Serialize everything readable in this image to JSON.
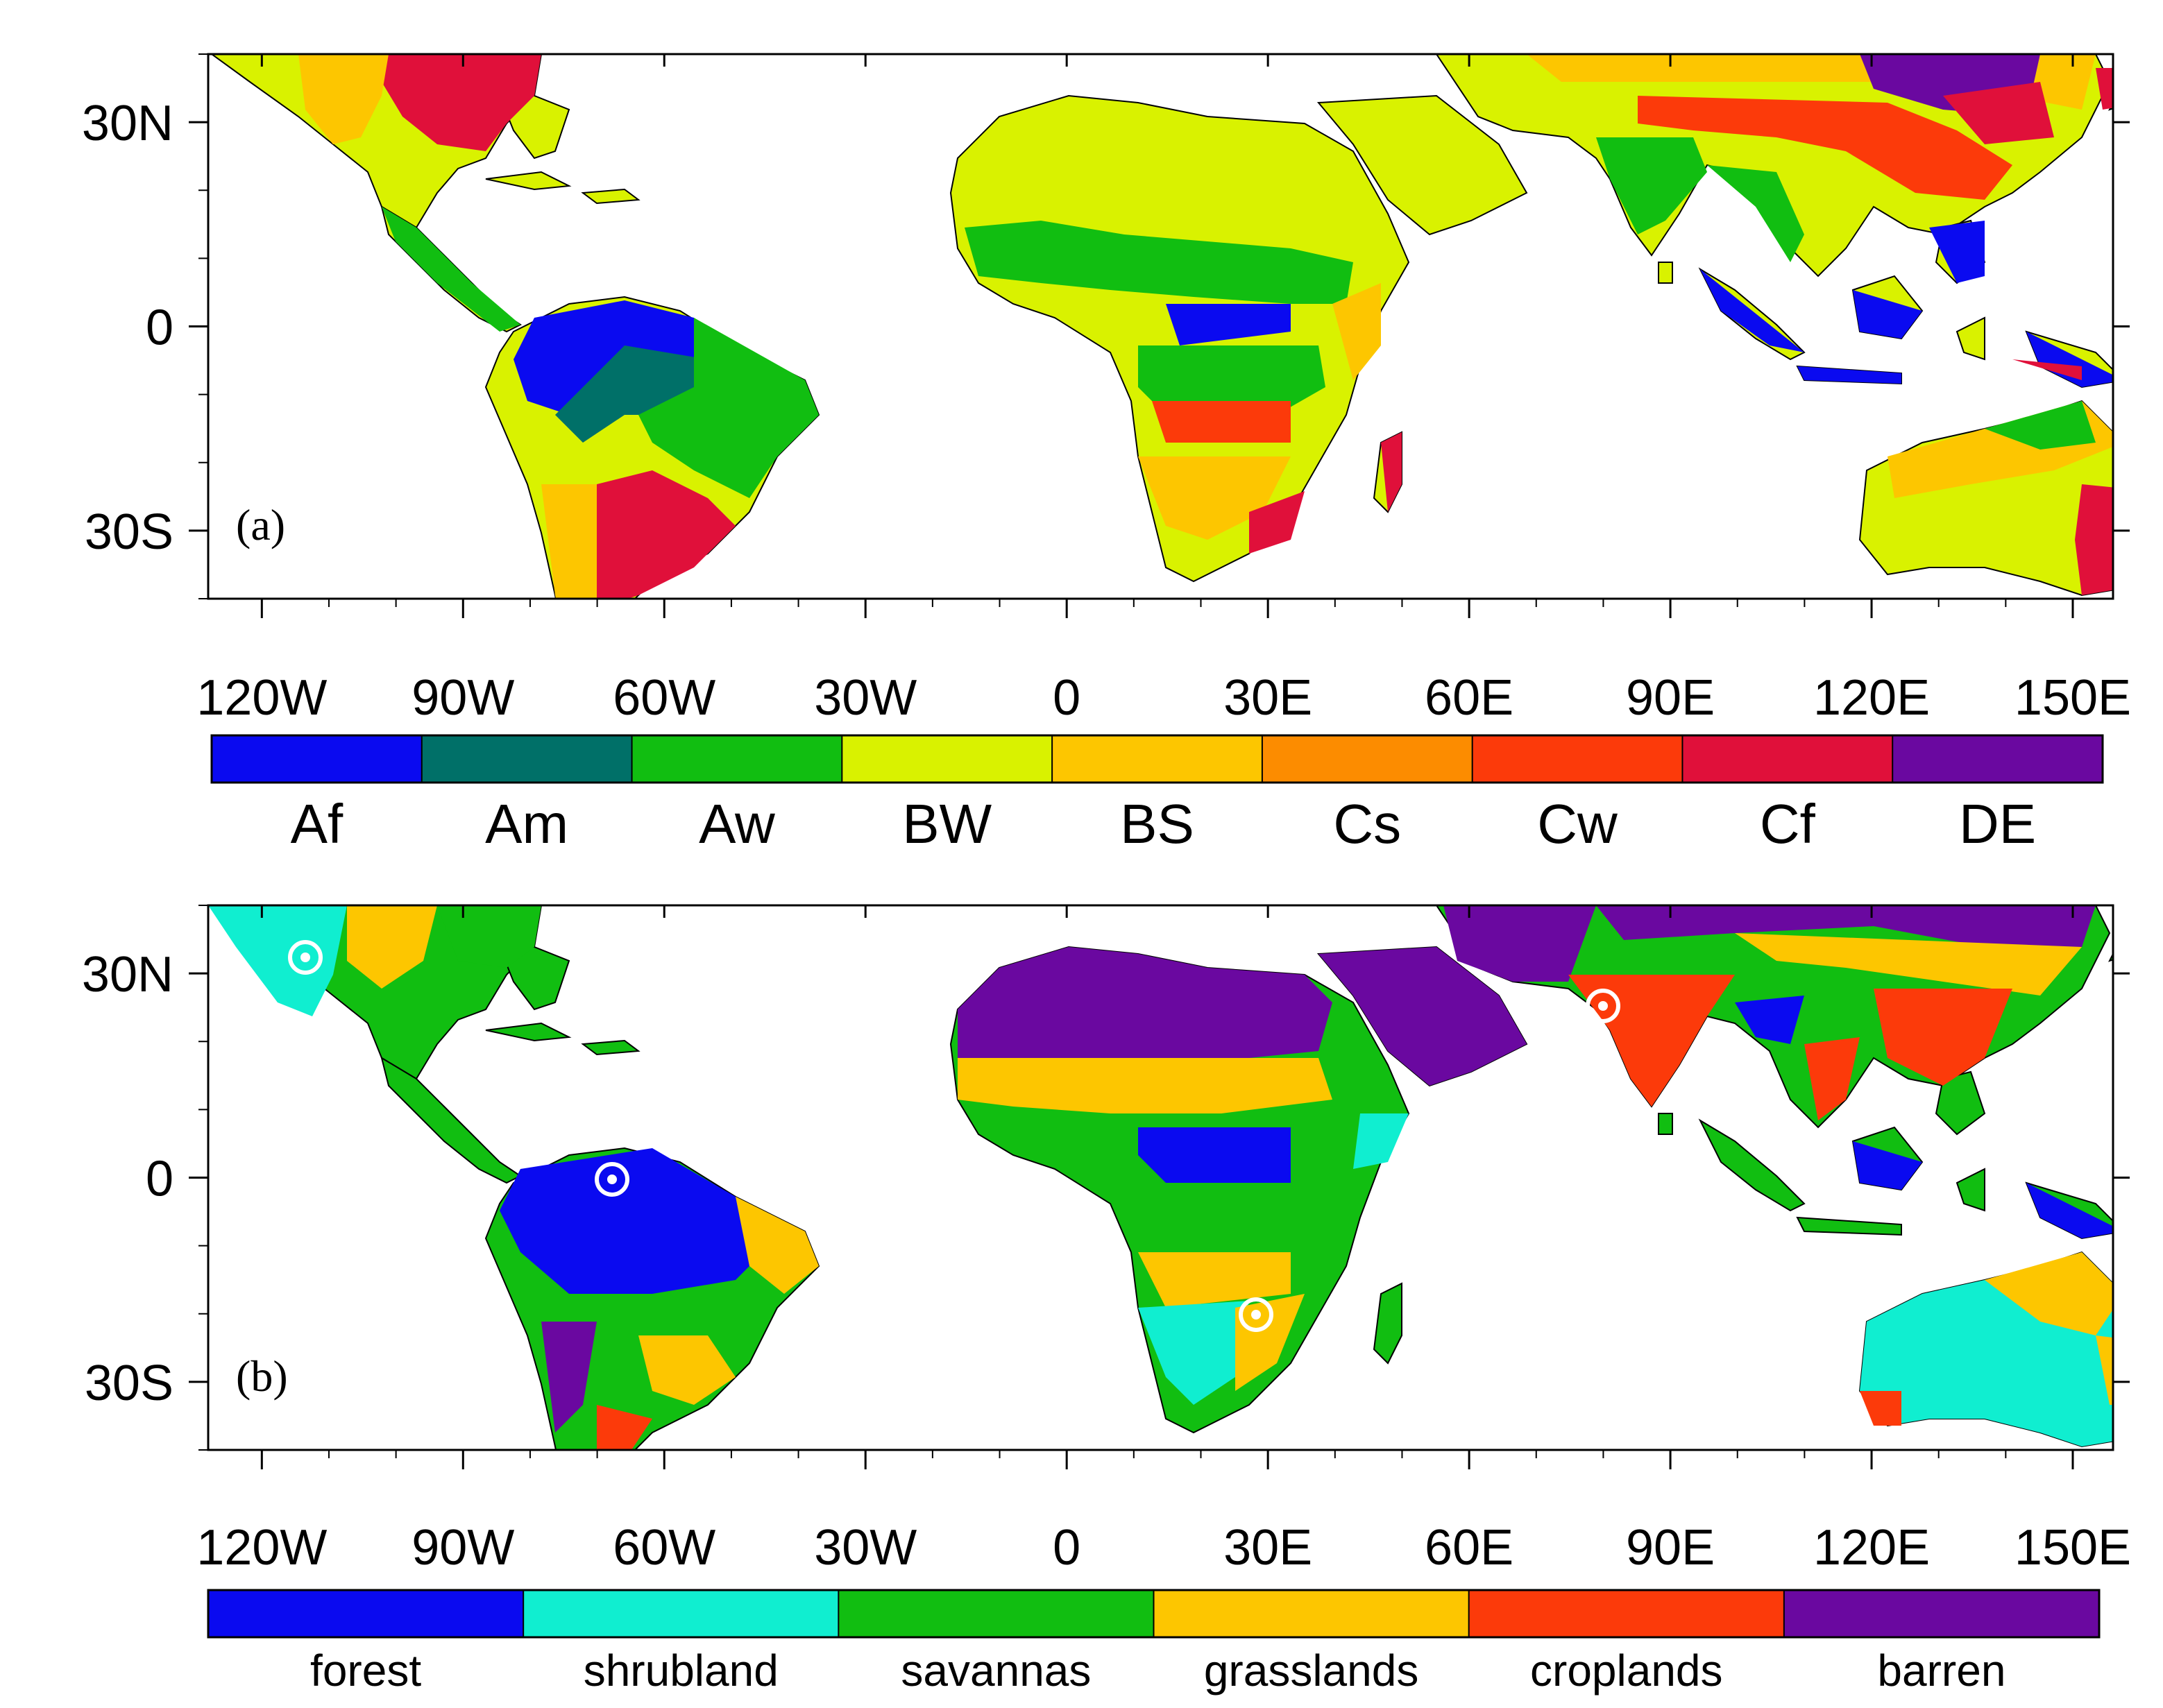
{
  "panel_a": {
    "label": "(a)",
    "lat_labels": [
      "30N",
      "0",
      "30S"
    ],
    "lon_labels": [
      "120W",
      "90W",
      "60W",
      "30W",
      "0",
      "30E",
      "60E",
      "90E",
      "120E",
      "150E"
    ],
    "legend": [
      {
        "label": "Af",
        "color": "#0a0af0"
      },
      {
        "label": "Am",
        "color": "#007068"
      },
      {
        "label": "Aw",
        "color": "#11be11"
      },
      {
        "label": "BW",
        "color": "#d9f200"
      },
      {
        "label": "BS",
        "color": "#fdc600"
      },
      {
        "label": "Cs",
        "color": "#fc8c00"
      },
      {
        "label": "Cw",
        "color": "#fc3a0a"
      },
      {
        "label": "Cf",
        "color": "#e0103a"
      },
      {
        "label": "DE",
        "color": "#6a08a0"
      }
    ]
  },
  "panel_b": {
    "label": "(b)",
    "lat_labels": [
      "30N",
      "0",
      "30S"
    ],
    "lon_labels": [
      "120W",
      "90W",
      "60W",
      "30W",
      "0",
      "30E",
      "60E",
      "90E",
      "120E",
      "150E"
    ],
    "legend": [
      {
        "label": "forest",
        "color": "#0a0af0"
      },
      {
        "label": "shrubland",
        "color": "#10eed0"
      },
      {
        "label": "savannas",
        "color": "#11be11"
      },
      {
        "label": "grasslands",
        "color": "#fdc600"
      },
      {
        "label": "croplands",
        "color": "#fc3a0a"
      },
      {
        "label": "barren",
        "color": "#6a08a0"
      }
    ]
  }
}
